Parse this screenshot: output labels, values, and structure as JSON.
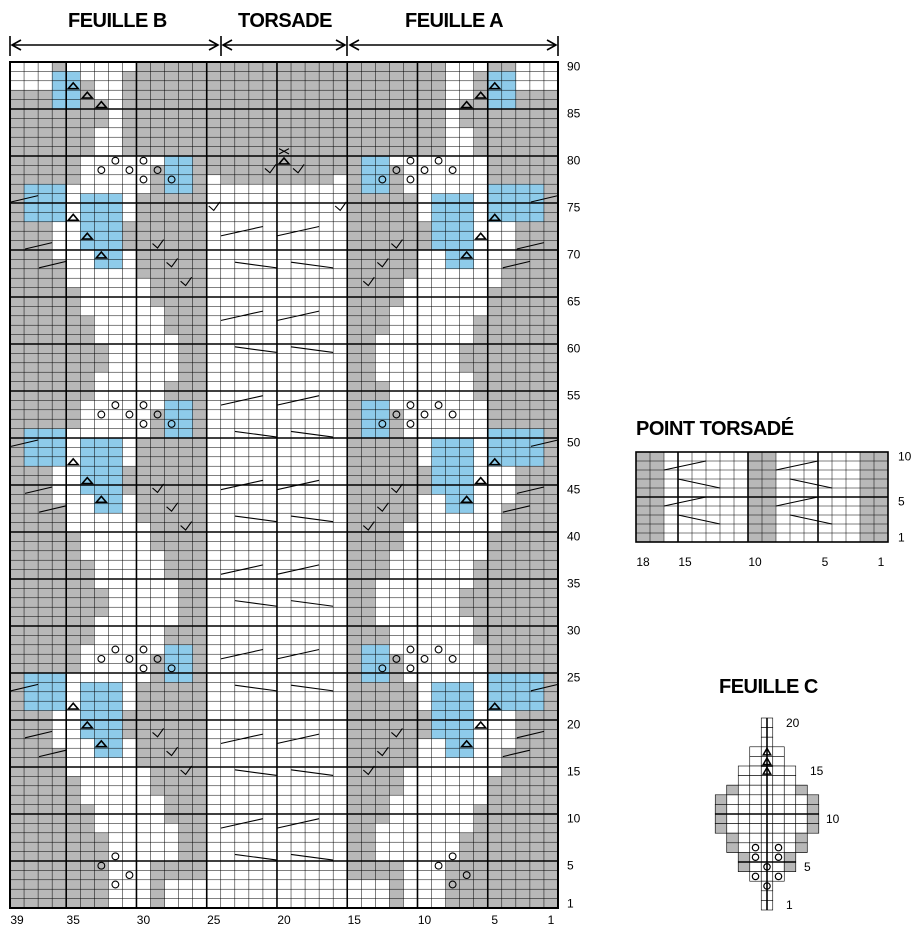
{
  "main_chart": {
    "headers": {
      "feuille_b": "FEUILLE B",
      "torsade": "TORSADE",
      "feuille_a": "FEUILLE A"
    },
    "bottom_numbers": [
      "39",
      "35",
      "30",
      "25",
      "20",
      "15",
      "10",
      "5",
      "1"
    ],
    "row_numbers": [
      "90",
      "85",
      "80",
      "75",
      "70",
      "65",
      "60",
      "55",
      "50",
      "45",
      "40",
      "35",
      "30",
      "25",
      "20",
      "15",
      "10",
      "5",
      "1"
    ],
    "columns": 39,
    "rows": 90
  },
  "point_torsade": {
    "title": "POINT TORSADÉ",
    "bottom_numbers": [
      "18",
      "15",
      "10",
      "5",
      "1"
    ],
    "row_numbers": [
      "10",
      "5",
      "1"
    ]
  },
  "feuille_c": {
    "title": "FEUILLE C",
    "row_numbers": [
      "20",
      "15",
      "10",
      "5",
      "1"
    ]
  },
  "colors": {
    "grey": "#b8b8b8",
    "dark_grey": "#9a9a9a",
    "blue": "#8ecbea",
    "white": "#ffffff",
    "line": "#000000"
  }
}
